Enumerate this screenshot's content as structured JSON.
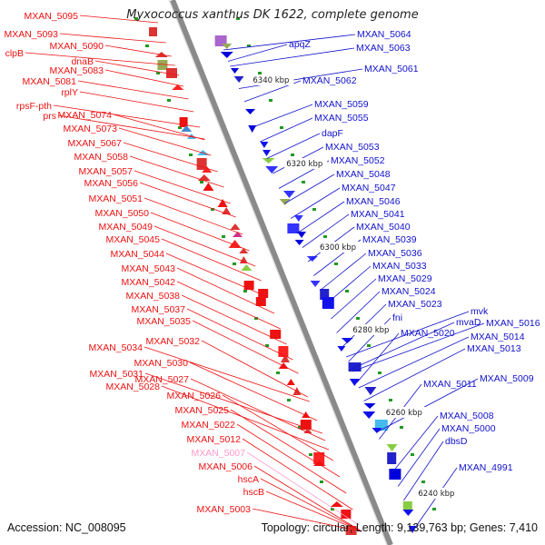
{
  "title": "Myxococcus xanthus DK 1622, complete genome",
  "accession_text": "Accession: NC_008095",
  "topology_text": "Topology: circular; Length: 9,139,763 bp; Genes: 7,410",
  "colors": {
    "left_label": "#ee1111",
    "right_label": "#1111cc",
    "highlight_label": "#ff99cc",
    "backbone": "#8a8a8a",
    "tick": "#229922"
  },
  "left_labels": [
    "MXAN_5095",
    "MXAN_5093",
    "MXAN_5090",
    "clpB",
    "dnaB",
    "MXAN_5083",
    "MXAN_5081",
    "rplY",
    "rpsF-pth",
    "prs",
    "MXAN_5074",
    "MXAN_5073",
    "MXAN_5067",
    "MXAN_5058",
    "MXAN_5057",
    "MXAN_5056",
    "MXAN_5051",
    "MXAN_5050",
    "MXAN_5049",
    "MXAN_5045",
    "MXAN_5044",
    "MXAN_5043",
    "MXAN_5042",
    "MXAN_5038",
    "MXAN_5037",
    "MXAN_5035",
    "MXAN_5034",
    "MXAN_5032",
    "MXAN_5030",
    "MXAN_5031",
    "MXAN_5027",
    "MXAN_5028",
    "MXAN_5026",
    "MXAN_5025",
    "MXAN_5022",
    "MXAN_5012",
    "MXAN_5007",
    "MXAN_5006",
    "hscA",
    "hscB",
    "MXAN_5003"
  ],
  "right_labels": [
    "MXAN_5064",
    "apqZ",
    "MXAN_5063",
    "MXAN_5061",
    "MXAN_5062",
    "MXAN_5059",
    "MXAN_5055",
    "dapF",
    "MXAN_5053",
    "MXAN_5052",
    "MXAN_5048",
    "MXAN_5047",
    "MXAN_5046",
    "MXAN_5041",
    "MXAN_5040",
    "MXAN_5039",
    "MXAN_5036",
    "MXAN_5033",
    "MXAN_5029",
    "MXAN_5024",
    "MXAN_5023",
    "fni",
    "mvk",
    "mvaD",
    "MXAN_5016",
    "MXAN_5020",
    "MXAN_5014",
    "MXAN_5013",
    "MXAN_5009",
    "MXAN_5011",
    "MXAN_5008",
    "MXAN_5000",
    "dbsD",
    "MXAN_4991"
  ],
  "kbp_labels": [
    "6340 kbp",
    "6320 kbp",
    "6300 kbp",
    "6280 kbp",
    "6260 kbp",
    "6240 kbp"
  ]
}
